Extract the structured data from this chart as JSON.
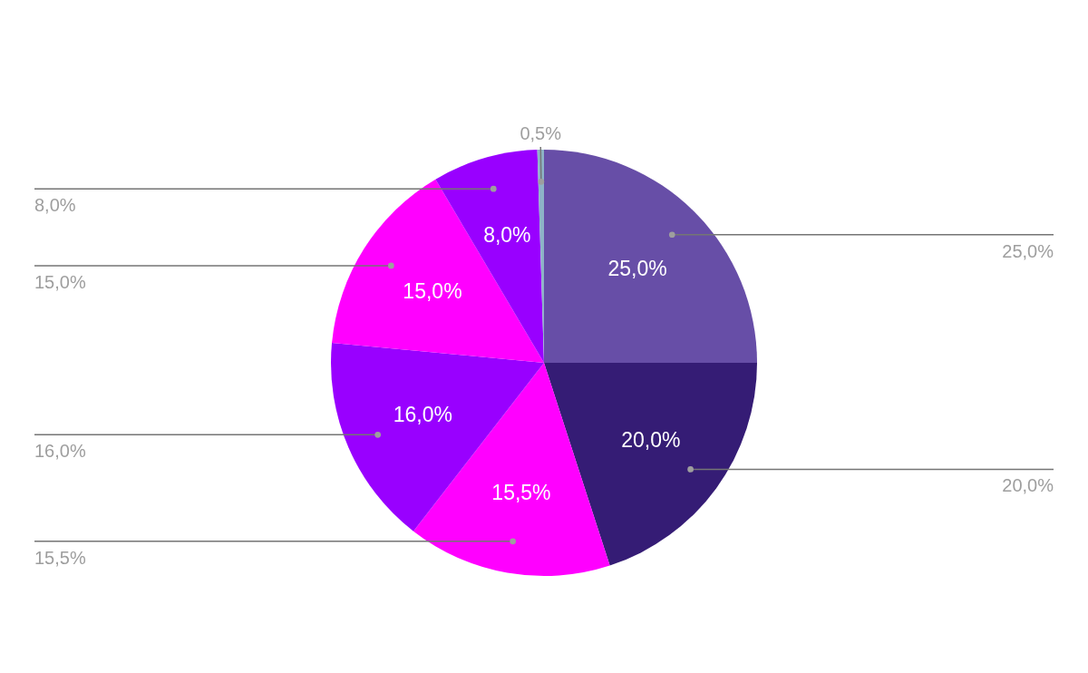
{
  "chart_data": {
    "type": "pie",
    "categories": [
      null,
      null,
      null,
      null,
      null,
      null,
      null
    ],
    "values": [
      25,
      20,
      15.5,
      16,
      15,
      8,
      0.5
    ],
    "colors": [
      "#674ea7",
      "#351c75",
      "#ff00ff",
      "#9900ff",
      "#ff00ff",
      "#9900ff",
      "#8db3c7"
    ],
    "value_labels": [
      "25,0%",
      "20,0%",
      "15,5%",
      "16,0%",
      "15,0%",
      "8,0%",
      "0,5%"
    ]
  }
}
